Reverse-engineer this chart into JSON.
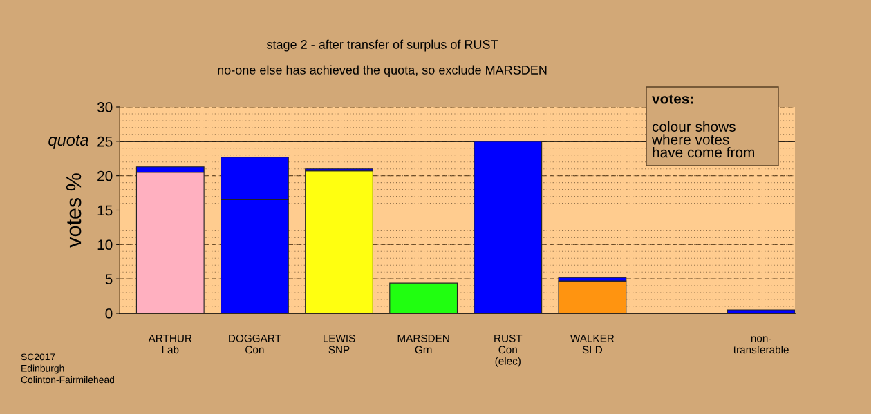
{
  "chart_data": {
    "type": "bar",
    "stacked": true,
    "title": "stage 2 - after transfer of surplus of RUST",
    "subtitle": "no-one else has achieved the quota, so exclude MARSDEN",
    "ylabel": "votes %",
    "legend_title": "votes:",
    "categories": [
      "ARTHUR\nLab",
      "DOGGART\nCon",
      "LEWIS\nSNP",
      "MARSDEN\nGrn",
      "RUST\nCon\n(elec)",
      "WALKER\nSLD",
      null,
      "non-\ntransferable"
    ],
    "series": [
      {
        "colors": [
          "#ffb0c0",
          "#0000ff",
          "#ffff10",
          "#20ff10",
          "#0000ff",
          "#ff9410",
          null,
          "#0000ff"
        ],
        "values": [
          20.5,
          16.5,
          20.7,
          4.4,
          25.0,
          4.7,
          null,
          0.5
        ]
      },
      {
        "color": "#0000ff",
        "values": [
          0.8,
          6.2,
          0.3,
          null,
          null,
          0.5,
          null,
          null
        ]
      }
    ],
    "ylim": [
      0,
      30
    ],
    "yticks": [
      0,
      5,
      10,
      15,
      20,
      25,
      30
    ],
    "grid": "y",
    "ref_lines": [
      {
        "axis": "y",
        "value": 25,
        "label": "quota",
        "color": "#000000",
        "line_style": "solid"
      }
    ],
    "annotations": [
      "colour shows\nwhere votes\nhave come from",
      "SC2017\nEdinburgh\nColinton-Fairmilehead"
    ]
  }
}
